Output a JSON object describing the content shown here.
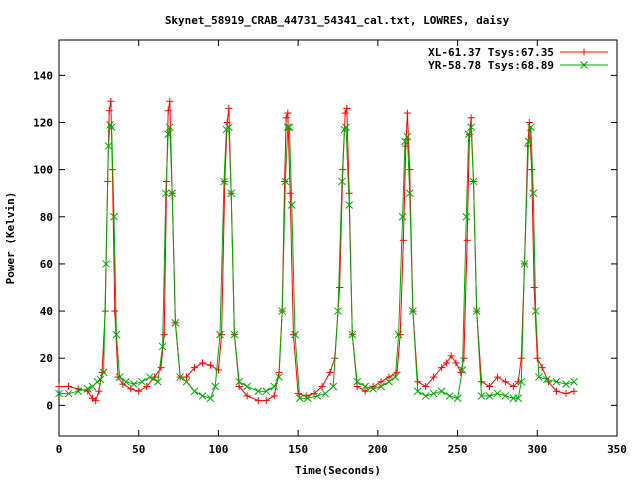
{
  "chart_data": {
    "type": "line",
    "title": "Skynet_58919_CRAB_44731_54341_cal.txt, LOWRES, daisy",
    "xlabel": "Time(Seconds)",
    "ylabel": "Power (Kelvin)",
    "xlim": [
      0,
      350
    ],
    "ylim": [
      -13,
      155
    ],
    "xticks": [
      0,
      50,
      100,
      150,
      200,
      250,
      300,
      350
    ],
    "yticks": [
      0,
      20,
      40,
      60,
      80,
      100,
      120,
      140
    ],
    "grid": false,
    "legend_position": "top-right",
    "series": [
      {
        "name": "XL-61.37 Tsys:67.35",
        "color": "#ff0000",
        "marker": "plus",
        "points": [
          [
            0,
            8
          ],
          [
            6,
            8
          ],
          [
            12,
            7
          ],
          [
            18,
            6
          ],
          [
            21,
            3
          ],
          [
            23,
            2
          ],
          [
            25,
            6
          ],
          [
            27,
            14
          ],
          [
            29,
            40
          ],
          [
            30.5,
            95
          ],
          [
            31.5,
            125
          ],
          [
            32.5,
            129
          ],
          [
            33.5,
            100
          ],
          [
            35,
            40
          ],
          [
            37,
            12
          ],
          [
            40,
            9
          ],
          [
            45,
            7
          ],
          [
            50,
            6
          ],
          [
            55,
            8
          ],
          [
            60,
            12
          ],
          [
            64,
            16
          ],
          [
            66,
            30
          ],
          [
            67.5,
            95
          ],
          [
            68.5,
            125
          ],
          [
            69.5,
            129
          ],
          [
            71,
            90
          ],
          [
            73,
            35
          ],
          [
            76,
            12
          ],
          [
            80,
            12
          ],
          [
            85,
            16
          ],
          [
            90,
            18
          ],
          [
            95,
            17
          ],
          [
            100,
            15
          ],
          [
            102,
            30
          ],
          [
            104,
            95
          ],
          [
            105.5,
            120
          ],
          [
            106.5,
            126
          ],
          [
            108,
            90
          ],
          [
            110,
            30
          ],
          [
            113,
            8
          ],
          [
            118,
            4
          ],
          [
            125,
            2
          ],
          [
            130,
            2
          ],
          [
            135,
            4
          ],
          [
            138,
            14
          ],
          [
            140,
            40
          ],
          [
            141.5,
            95
          ],
          [
            142.5,
            122
          ],
          [
            143.5,
            124
          ],
          [
            145,
            90
          ],
          [
            147,
            30
          ],
          [
            150,
            5
          ],
          [
            155,
            4
          ],
          [
            160,
            5
          ],
          [
            165,
            8
          ],
          [
            170,
            14
          ],
          [
            173,
            20
          ],
          [
            176,
            50
          ],
          [
            178,
            100
          ],
          [
            179.5,
            124
          ],
          [
            180.5,
            126
          ],
          [
            182,
            90
          ],
          [
            184,
            30
          ],
          [
            187,
            8
          ],
          [
            192,
            6
          ],
          [
            197,
            8
          ],
          [
            202,
            10
          ],
          [
            207,
            12
          ],
          [
            212,
            14
          ],
          [
            214,
            30
          ],
          [
            216,
            70
          ],
          [
            217.5,
            110
          ],
          [
            218.5,
            124
          ],
          [
            220,
            100
          ],
          [
            222,
            40
          ],
          [
            225,
            10
          ],
          [
            230,
            8
          ],
          [
            235,
            12
          ],
          [
            240,
            16
          ],
          [
            243,
            18
          ],
          [
            246,
            21
          ],
          [
            249,
            18
          ],
          [
            252,
            14
          ],
          [
            254,
            20
          ],
          [
            256,
            70
          ],
          [
            257.5,
            115
          ],
          [
            258.5,
            122
          ],
          [
            260,
            95
          ],
          [
            262,
            40
          ],
          [
            265,
            10
          ],
          [
            270,
            8
          ],
          [
            275,
            12
          ],
          [
            280,
            10
          ],
          [
            285,
            8
          ],
          [
            288,
            10
          ],
          [
            290,
            20
          ],
          [
            292,
            60
          ],
          [
            294,
            110
          ],
          [
            295,
            120
          ],
          [
            296.5,
            100
          ],
          [
            298,
            50
          ],
          [
            300,
            20
          ],
          [
            303,
            16
          ],
          [
            307,
            10
          ],
          [
            312,
            6
          ],
          [
            318,
            5
          ],
          [
            323,
            6
          ]
        ]
      },
      {
        "name": "YR-58.78 Tsys:68.89",
        "color": "#00aa00",
        "marker": "cross",
        "points": [
          [
            0,
            5
          ],
          [
            6,
            5
          ],
          [
            12,
            6
          ],
          [
            18,
            7
          ],
          [
            21,
            8
          ],
          [
            24,
            10
          ],
          [
            26,
            11
          ],
          [
            28,
            14
          ],
          [
            29.5,
            60
          ],
          [
            31,
            110
          ],
          [
            32,
            119
          ],
          [
            33,
            118
          ],
          [
            34.5,
            80
          ],
          [
            36,
            30
          ],
          [
            38,
            12
          ],
          [
            42,
            10
          ],
          [
            47,
            9
          ],
          [
            52,
            10
          ],
          [
            57,
            12
          ],
          [
            62,
            10
          ],
          [
            65,
            25
          ],
          [
            67,
            90
          ],
          [
            68.5,
            115
          ],
          [
            69.5,
            118
          ],
          [
            71,
            90
          ],
          [
            73,
            35
          ],
          [
            76,
            12
          ],
          [
            80,
            10
          ],
          [
            85,
            6
          ],
          [
            90,
            4
          ],
          [
            95,
            3
          ],
          [
            98,
            8
          ],
          [
            101,
            30
          ],
          [
            103.5,
            95
          ],
          [
            105,
            117
          ],
          [
            106.5,
            118
          ],
          [
            108,
            90
          ],
          [
            110,
            30
          ],
          [
            113,
            10
          ],
          [
            118,
            8
          ],
          [
            125,
            6
          ],
          [
            130,
            6
          ],
          [
            135,
            8
          ],
          [
            138,
            12
          ],
          [
            140,
            40
          ],
          [
            142,
            95
          ],
          [
            143.5,
            118
          ],
          [
            144.5,
            118
          ],
          [
            146,
            85
          ],
          [
            148,
            30
          ],
          [
            151,
            3
          ],
          [
            156,
            3
          ],
          [
            162,
            4
          ],
          [
            167,
            5
          ],
          [
            172,
            8
          ],
          [
            175,
            40
          ],
          [
            177.5,
            95
          ],
          [
            179,
            117
          ],
          [
            180,
            118
          ],
          [
            182,
            85
          ],
          [
            184,
            30
          ],
          [
            187,
            10
          ],
          [
            192,
            8
          ],
          [
            197,
            7
          ],
          [
            202,
            8
          ],
          [
            207,
            10
          ],
          [
            211,
            12
          ],
          [
            213,
            30
          ],
          [
            215.5,
            80
          ],
          [
            217,
            112
          ],
          [
            218.5,
            114
          ],
          [
            220,
            90
          ],
          [
            222,
            40
          ],
          [
            225,
            6
          ],
          [
            230,
            4
          ],
          [
            235,
            5
          ],
          [
            240,
            6
          ],
          [
            245,
            4
          ],
          [
            250,
            3
          ],
          [
            253,
            15
          ],
          [
            255.5,
            80
          ],
          [
            257,
            115
          ],
          [
            258.5,
            118
          ],
          [
            260,
            95
          ],
          [
            262,
            40
          ],
          [
            265,
            4
          ],
          [
            270,
            4
          ],
          [
            275,
            5
          ],
          [
            280,
            4
          ],
          [
            285,
            3
          ],
          [
            288,
            3
          ],
          [
            290,
            10
          ],
          [
            292,
            60
          ],
          [
            294.5,
            112
          ],
          [
            296,
            118
          ],
          [
            297.5,
            90
          ],
          [
            299,
            40
          ],
          [
            301,
            12
          ],
          [
            306,
            11
          ],
          [
            312,
            10
          ],
          [
            318,
            9
          ],
          [
            323,
            10
          ]
        ]
      }
    ]
  }
}
